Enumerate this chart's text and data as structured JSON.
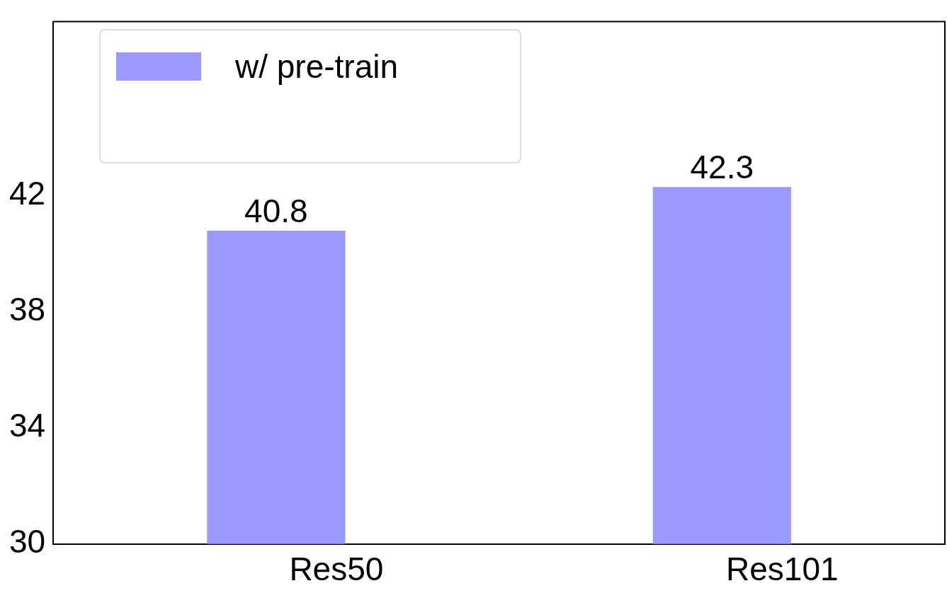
{
  "chart_data": {
    "type": "bar",
    "categories": [
      "Res50",
      "Res101"
    ],
    "series": [
      {
        "name": "w/ pre-train",
        "color": "#9999ff",
        "values": [
          40.8,
          42.3
        ]
      }
    ],
    "ylim": [
      30,
      48
    ],
    "yticks": [
      30,
      34,
      38,
      42
    ],
    "data_labels": true,
    "legend": "top left",
    "grid": false
  }
}
